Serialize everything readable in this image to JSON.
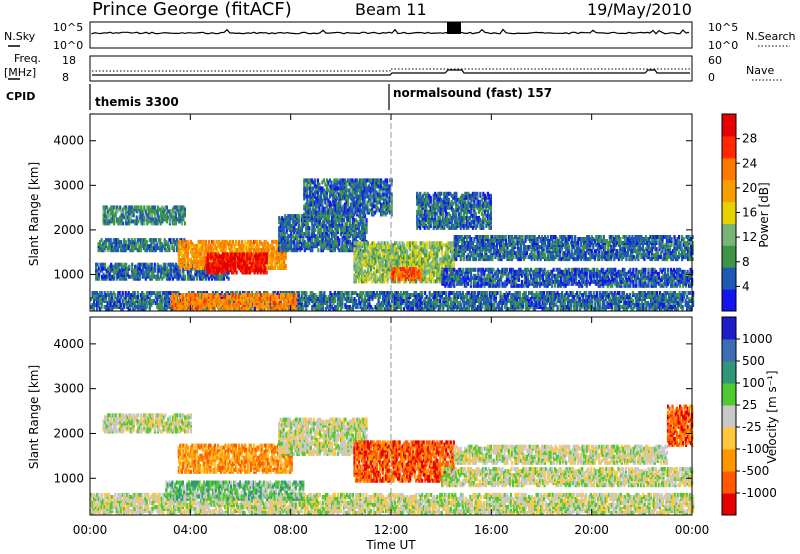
{
  "header": {
    "station": "Prince George (fitACF)",
    "beam": "Beam 11",
    "date": "19/May/2010"
  },
  "nsky_panel": {
    "left_label": "N.Sky",
    "right_label": "N.Search",
    "left_ticks": [
      "10^5",
      "10^0"
    ],
    "right_ticks": [
      "10^5",
      "10^0"
    ]
  },
  "freq_panel": {
    "left_label_1": "Freq.",
    "left_label_2": "[MHz]",
    "right_label": "Nave",
    "left_ticks": [
      "18",
      "8"
    ],
    "right_ticks": [
      "60",
      "0"
    ]
  },
  "cpid": {
    "label": "CPID",
    "modes": [
      {
        "name": "themis 3300",
        "start_hour": 0
      },
      {
        "name": "normalsound (fast) 157",
        "start_hour": 12
      }
    ]
  },
  "time_axis": {
    "xlabel": "Time UT",
    "ticks": [
      "00:00",
      "04:00",
      "08:00",
      "12:00",
      "16:00",
      "20:00",
      "00:00"
    ]
  },
  "colors": {
    "power": [
      "#1414f0",
      "#1e5ab4",
      "#3c9646",
      "#78b478",
      "#e6d200",
      "#f5a000",
      "#ff7800",
      "#ff2800",
      "#e60000"
    ],
    "velocity": [
      "#e60000",
      "#ff5a00",
      "#ff9600",
      "#ffc83c",
      "#c8c8c8",
      "#50c832",
      "#329678",
      "#3c6eb4",
      "#1e1ec8"
    ]
  },
  "chart_data": [
    {
      "type": "heatmap",
      "name": "power",
      "ylabel": "Slant Range [km]",
      "xlim": [
        0,
        24
      ],
      "ylim": [
        180,
        4600
      ],
      "yticks": [
        1000,
        2000,
        3000,
        4000
      ],
      "colorbar": {
        "label": "Power [dB]",
        "min": 0,
        "max": 32,
        "tick_values": [
          4,
          8,
          12,
          16,
          20,
          24,
          28
        ],
        "tick_labels": [
          "4",
          "8",
          "12",
          "16",
          "20",
          "24",
          "28"
        ]
      },
      "echo_regions": [
        {
          "t0": 0.0,
          "t1": 24.0,
          "r0": 180,
          "r1": 560,
          "value": 6
        },
        {
          "t0": 0.2,
          "t1": 5.5,
          "r0": 860,
          "r1": 1180,
          "value": 6
        },
        {
          "t0": 0.3,
          "t1": 3.8,
          "r0": 1500,
          "r1": 1750,
          "value": 7
        },
        {
          "t0": 0.5,
          "t1": 3.8,
          "r0": 2100,
          "r1": 2500,
          "value": 8
        },
        {
          "t0": 3.5,
          "t1": 7.8,
          "r0": 1100,
          "r1": 1700,
          "value": 21
        },
        {
          "t0": 4.6,
          "t1": 7.0,
          "r0": 1000,
          "r1": 1450,
          "value": 30
        },
        {
          "t0": 3.2,
          "t1": 8.2,
          "r0": 180,
          "r1": 520,
          "value": 22
        },
        {
          "t0": 7.5,
          "t1": 11.0,
          "r0": 1500,
          "r1": 2300,
          "value": 6
        },
        {
          "t0": 8.5,
          "t1": 12.0,
          "r0": 2300,
          "r1": 3100,
          "value": 6
        },
        {
          "t0": 10.5,
          "t1": 14.5,
          "r0": 800,
          "r1": 1700,
          "value": 13
        },
        {
          "t0": 12.0,
          "t1": 13.2,
          "r0": 850,
          "r1": 1100,
          "value": 25
        },
        {
          "t0": 14.0,
          "t1": 24.0,
          "r0": 700,
          "r1": 1100,
          "value": 5
        },
        {
          "t0": 14.5,
          "t1": 24.0,
          "r0": 1300,
          "r1": 1800,
          "value": 6
        },
        {
          "t0": 13.0,
          "t1": 16.0,
          "r0": 2000,
          "r1": 2800,
          "value": 6
        }
      ]
    },
    {
      "type": "heatmap",
      "name": "velocity",
      "ylabel": "Slant Range [km]",
      "xlim": [
        0,
        24
      ],
      "ylim": [
        180,
        4600
      ],
      "yticks": [
        1000,
        2000,
        3000,
        4000
      ],
      "colorbar": {
        "label": "Velocity [m s⁻¹]",
        "tick_labels": [
          "-1000",
          "-500",
          "-100",
          "-25",
          "25",
          "100",
          "500",
          "1000"
        ]
      },
      "echo_regions": [
        {
          "t0": 0.0,
          "t1": 24.0,
          "r0": 180,
          "r1": 600,
          "value": 4
        },
        {
          "t0": 3.5,
          "t1": 8.0,
          "r0": 1100,
          "r1": 1700,
          "value": 2
        },
        {
          "t0": 0.5,
          "t1": 4.0,
          "r0": 2000,
          "r1": 2400,
          "value": 4
        },
        {
          "t0": 3.0,
          "t1": 8.5,
          "r0": 500,
          "r1": 900,
          "value": 5
        },
        {
          "t0": 7.5,
          "t1": 11.0,
          "r0": 1500,
          "r1": 2300,
          "value": 4
        },
        {
          "t0": 10.5,
          "t1": 14.5,
          "r0": 900,
          "r1": 1800,
          "value": 1
        },
        {
          "t0": 14.0,
          "t1": 24.0,
          "r0": 800,
          "r1": 1200,
          "value": 4
        },
        {
          "t0": 14.5,
          "t1": 23.0,
          "r0": 1300,
          "r1": 1700,
          "value": 4
        },
        {
          "t0": 23.0,
          "t1": 24.0,
          "r0": 1700,
          "r1": 2600,
          "value": 1
        }
      ]
    }
  ]
}
